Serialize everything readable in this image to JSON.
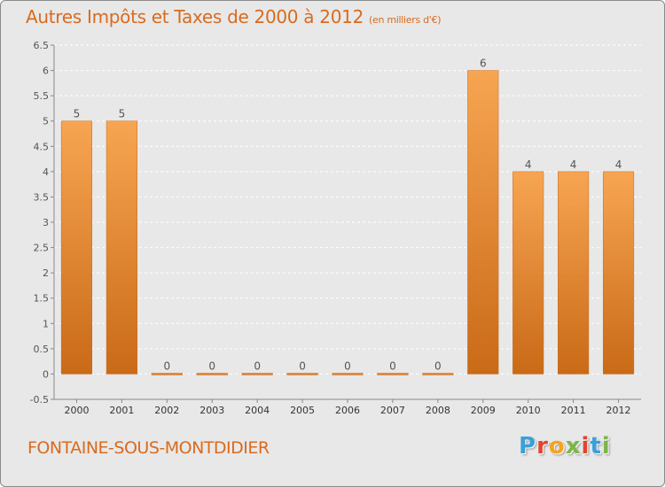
{
  "header": {
    "title": "Autres Impôts et Taxes de 2000 à 2012",
    "unit": "(en milliers d'€)"
  },
  "footer": {
    "commune": "FONTAINE-SOUS-MONTDIDIER",
    "logo_letters": [
      "P",
      "r",
      "o",
      "x",
      "i",
      "t",
      "i"
    ]
  },
  "colors": {
    "title": "#d96b1e",
    "bar_light": "#f7a552",
    "bar_dark": "#c96a17",
    "logo": [
      "#3aa0d8",
      "#e2442f",
      "#f4a41d",
      "#7ab648",
      "#e2442f",
      "#3aa0d8",
      "#7ab648"
    ]
  },
  "chart_data": {
    "type": "bar",
    "categories": [
      "2000",
      "2001",
      "2002",
      "2003",
      "2004",
      "2005",
      "2006",
      "2007",
      "2008",
      "2009",
      "2010",
      "2011",
      "2012"
    ],
    "values": [
      5,
      5,
      0,
      0,
      0,
      0,
      0,
      0,
      0,
      6,
      4,
      4,
      4
    ],
    "data_labels": [
      "5",
      "5",
      "0",
      "0",
      "0",
      "0",
      "0",
      "0",
      "0",
      "6",
      "4",
      "4",
      "4"
    ],
    "ylim": [
      -0.5,
      6.5
    ],
    "yticks": [
      -0.5,
      0,
      0.5,
      1,
      1.5,
      2,
      2.5,
      3,
      3.5,
      4,
      4.5,
      5,
      5.5,
      6,
      6.5
    ],
    "ytick_labels": [
      "-0.5",
      "0",
      "0.5",
      "1",
      "1.5",
      "2",
      "2.5",
      "3",
      "3.5",
      "4",
      "4.5",
      "5",
      "5.5",
      "6",
      "6.5"
    ],
    "grid": "horizontal dashed",
    "legend": "none"
  }
}
